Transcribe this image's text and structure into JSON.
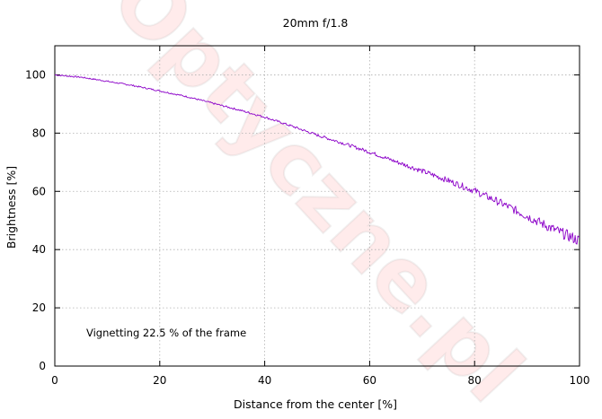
{
  "chart_data": {
    "type": "line",
    "title": "20mm f/1.8",
    "xlabel": "Distance from the center [%]",
    "ylabel": "Brightness [%]",
    "xlim": [
      0,
      100
    ],
    "ylim": [
      0,
      110
    ],
    "x_ticks": [
      0,
      20,
      40,
      60,
      80,
      100
    ],
    "y_ticks": [
      0,
      20,
      40,
      60,
      80,
      100
    ],
    "grid": true,
    "annotation": "Vignetting 22.5 % of the frame",
    "watermark": "Optyczne.pl",
    "series": [
      {
        "color": "#8b00c8",
        "x": [
          0,
          5,
          10,
          15,
          20,
          25,
          30,
          35,
          40,
          45,
          50,
          55,
          60,
          65,
          70,
          75,
          80,
          85,
          90,
          95,
          100
        ],
        "y": [
          100,
          99.2,
          97.8,
          96.3,
          94.5,
          92.6,
          90.3,
          88.0,
          85.5,
          82.5,
          79.3,
          76.5,
          73.5,
          70.2,
          67.0,
          63.7,
          60.2,
          56.0,
          51.5,
          47.0,
          43.0
        ]
      }
    ]
  }
}
